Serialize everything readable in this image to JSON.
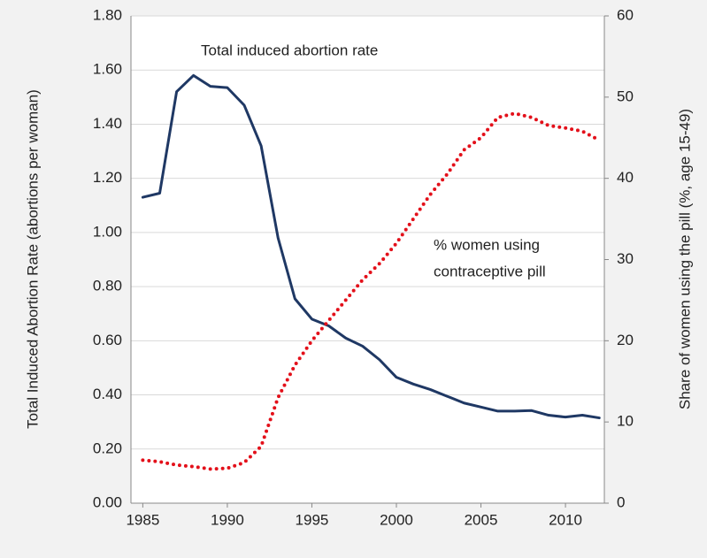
{
  "chart_data": {
    "type": "line",
    "annotations": [
      "Total induced abortion rate",
      "% women using",
      "contraceptive pill"
    ],
    "ylabel": "Total Induced Abortion Rate (abortions per woman)",
    "y2label": "Share of women using the pill (%, age 15-49)",
    "x": [
      1985,
      1986,
      1987,
      1988,
      1989,
      1990,
      1991,
      1992,
      1993,
      1994,
      1995,
      1996,
      1997,
      1998,
      1999,
      2000,
      2001,
      2002,
      2003,
      2004,
      2005,
      2006,
      2007,
      2008,
      2009,
      2010,
      2011,
      2012
    ],
    "xlim": [
      1984.3,
      2012.3
    ],
    "xticks": [
      1985,
      1990,
      1995,
      2000,
      2005,
      2010
    ],
    "ylim": [
      0,
      1.8
    ],
    "yticks": [
      {
        "value": 0,
        "label": "0.00"
      },
      {
        "value": 0.2,
        "label": "0.20"
      },
      {
        "value": 0.4,
        "label": "0.40"
      },
      {
        "value": 0.6,
        "label": "0.60"
      },
      {
        "value": 0.8,
        "label": "0.80"
      },
      {
        "value": 1,
        "label": "1.00"
      },
      {
        "value": 1.2,
        "label": "1.20"
      },
      {
        "value": 1.4,
        "label": "1.40"
      },
      {
        "value": 1.6,
        "label": "1.60"
      },
      {
        "value": 1.8,
        "label": "1.80"
      }
    ],
    "y2lim": [
      0,
      60
    ],
    "y2ticks": [
      0,
      10,
      20,
      30,
      40,
      50,
      60
    ],
    "grid": true,
    "series": [
      {
        "color": "#1f3864",
        "style": "solid",
        "values": [
          1.13,
          1.145,
          1.52,
          1.58,
          1.54,
          1.535,
          1.47,
          1.32,
          0.98,
          0.755,
          0.68,
          0.655,
          0.61,
          0.58,
          0.53,
          0.465,
          0.44,
          0.42,
          0.395,
          0.37,
          0.355,
          0.34,
          0.34,
          0.342,
          0.325,
          0.318,
          0.325,
          0.315
        ]
      },
      {
        "color": "#e3101a",
        "style": "dotted",
        "axis": "y2",
        "values": [
          5.3,
          5.1,
          4.7,
          4.5,
          4.2,
          4.3,
          5.0,
          7,
          13,
          17,
          20,
          22.5,
          25,
          27.5,
          29.5,
          32,
          35,
          38,
          40.5,
          43.5,
          45,
          47.5,
          48,
          47.5,
          46.5,
          46.2,
          45.8,
          44.7
        ]
      }
    ]
  }
}
